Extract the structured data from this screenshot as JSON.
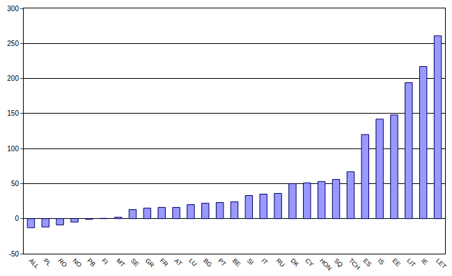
{
  "chart_data": {
    "type": "bar",
    "categories": [
      "ALL",
      "PL",
      "RO",
      "NO",
      "PB",
      "FI",
      "MT",
      "SE",
      "GR",
      "FR",
      "AT",
      "LU",
      "BG",
      "PT",
      "BE",
      "SI",
      "IT",
      "RU",
      "DK",
      "CY",
      "HON",
      "SQ",
      "TCH",
      "ES",
      "IS",
      "EE",
      "LIT",
      "IE",
      "LET"
    ],
    "values": [
      -13,
      -12,
      -9,
      -5,
      -1,
      0.5,
      2,
      13,
      15,
      16,
      16,
      20,
      22,
      23,
      24,
      33,
      35,
      36,
      50,
      51,
      53,
      56,
      67,
      120,
      142,
      148,
      194,
      217,
      261
    ],
    "color": "#9999ff",
    "ylim": [
      -50,
      300
    ],
    "yticks": [
      -50,
      0,
      50,
      100,
      150,
      200,
      250,
      300
    ],
    "grid": true
  }
}
